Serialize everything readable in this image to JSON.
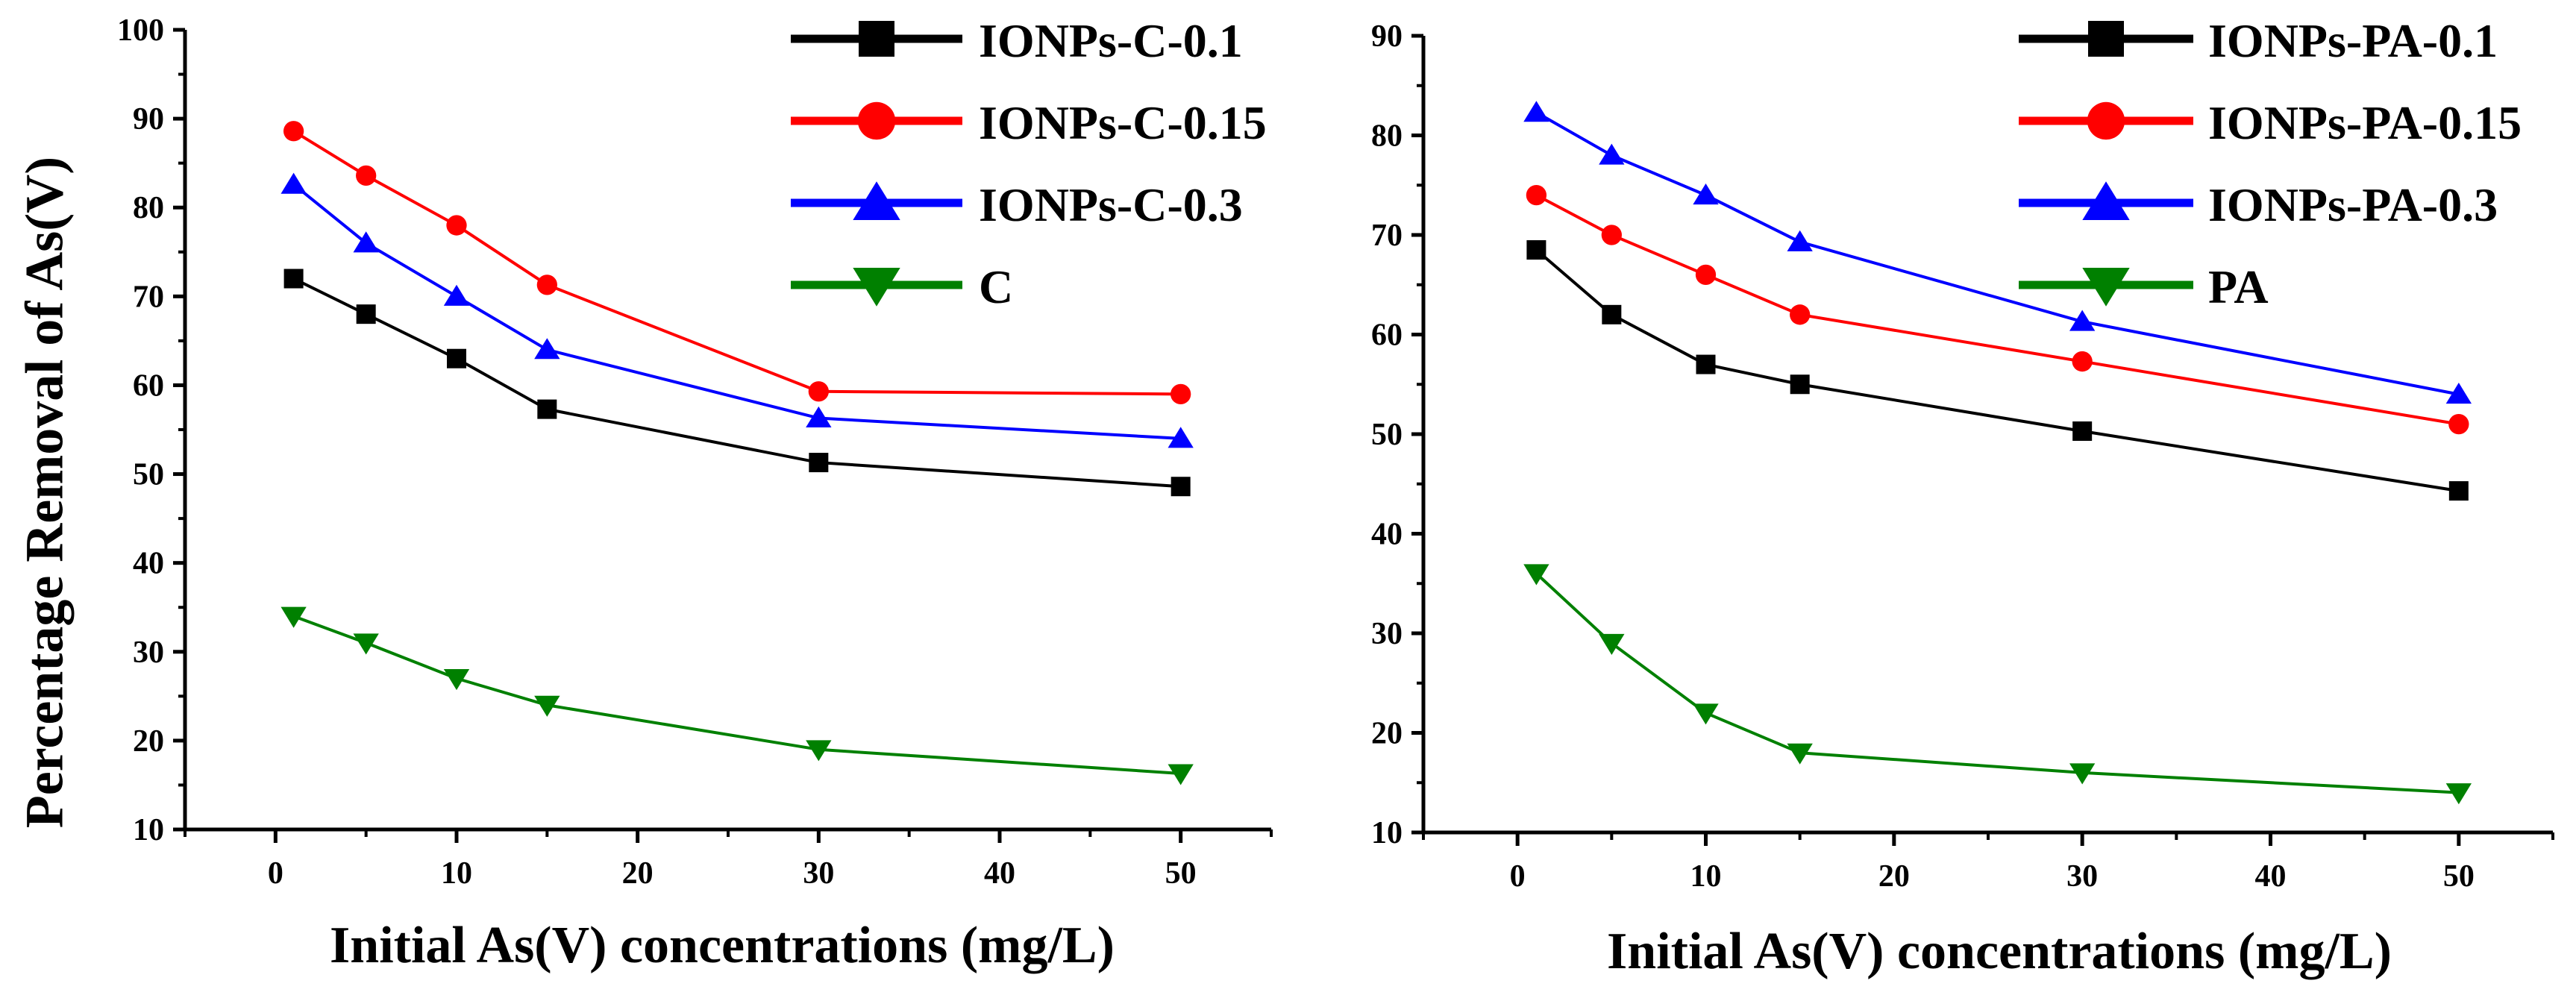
{
  "figure": {
    "ylabel": "Percentage Removal of As(V)"
  },
  "colors": {
    "black": "#000000",
    "red": "#ff0000",
    "blue": "#0000ff",
    "green": "#008000",
    "axis": "#000000"
  },
  "chart_data": [
    {
      "type": "line",
      "xlabel": "Initial As(V) concentrations (mg/L)",
      "ylabel": "Percentage Removal of As(V)",
      "xlim": [
        -5,
        55
      ],
      "ylim": [
        10,
        100
      ],
      "xticks": [
        0,
        10,
        20,
        30,
        40,
        50
      ],
      "yticks": [
        10,
        20,
        30,
        40,
        50,
        60,
        70,
        80,
        90,
        100
      ],
      "legend_position": "top-right",
      "x": [
        1,
        5,
        10,
        15,
        30,
        50
      ],
      "series": [
        {
          "name": "IONPs-C-0.1",
          "marker": "square",
          "color": "#000000",
          "values": [
            72,
            68,
            63,
            57.3,
            51.3,
            48.6
          ]
        },
        {
          "name": "IONPs-C-0.15",
          "marker": "circle",
          "color": "#ff0000",
          "values": [
            88.6,
            83.6,
            78,
            71.3,
            59.3,
            59
          ]
        },
        {
          "name": "IONPs-C-0.3",
          "marker": "triangle-up",
          "color": "#0000ff",
          "values": [
            82.6,
            76,
            70,
            64,
            56.3,
            54
          ]
        },
        {
          "name": "C",
          "marker": "triangle-down",
          "color": "#008000",
          "values": [
            34,
            31,
            27,
            24,
            19,
            16.3
          ]
        }
      ]
    },
    {
      "type": "line",
      "xlabel": "Initial As(V) concentrations (mg/L)",
      "ylabel": "",
      "xlim": [
        -5,
        55
      ],
      "ylim": [
        10,
        90
      ],
      "xticks": [
        0,
        10,
        20,
        30,
        40,
        50
      ],
      "yticks": [
        10,
        20,
        30,
        40,
        50,
        60,
        70,
        80,
        90
      ],
      "legend_position": "top-right",
      "x": [
        1,
        5,
        10,
        15,
        30,
        50
      ],
      "series": [
        {
          "name": "IONPs-PA-0.1",
          "marker": "square",
          "color": "#000000",
          "values": [
            68.5,
            62,
            57,
            55,
            50.3,
            44.3
          ]
        },
        {
          "name": "IONPs-PA-0.15",
          "marker": "circle",
          "color": "#ff0000",
          "values": [
            74,
            70,
            66,
            62,
            57.3,
            51
          ]
        },
        {
          "name": "IONPs-PA-0.3",
          "marker": "triangle-up",
          "color": "#0000ff",
          "values": [
            82.3,
            78,
            74,
            69.3,
            61.3,
            54
          ]
        },
        {
          "name": "PA",
          "marker": "triangle-down",
          "color": "#008000",
          "values": [
            36,
            29,
            22,
            18,
            16,
            14
          ]
        }
      ]
    }
  ]
}
